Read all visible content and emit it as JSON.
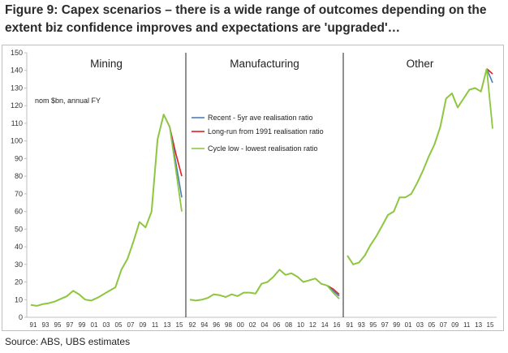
{
  "title": "Figure 9: Capex scenarios – there is a wide range of outcomes depending on the extent biz confidence improves and expectations are 'upgraded'…",
  "source": "Source:  ABS, UBS estimates",
  "colors": {
    "recent": "#4a7ebb",
    "longrun": "#e02020",
    "cyclelow": "#8dc63f",
    "divider": "#222222",
    "axis": "#bfbfbf"
  },
  "chart_data": {
    "type": "line",
    "ylim": [
      0,
      150
    ],
    "yticks": [
      0,
      10,
      20,
      30,
      40,
      50,
      60,
      70,
      80,
      90,
      100,
      110,
      120,
      130,
      140,
      150
    ],
    "unit_note": "nom $bn, annual FY",
    "legend": [
      "Recent - 5yr ave realisation ratio",
      "Long-run from 1991 realisation ratio",
      "Cycle low - lowest realisation ratio"
    ],
    "panels": [
      {
        "name": "Mining",
        "x": [
          1991,
          1992,
          1993,
          1994,
          1995,
          1996,
          1997,
          1998,
          1999,
          2000,
          2001,
          2002,
          2003,
          2004,
          2005,
          2006,
          2007,
          2008,
          2009,
          2010,
          2011,
          2012,
          2013,
          2014
        ],
        "history": [
          7,
          6.5,
          7.5,
          8,
          9,
          10.5,
          12,
          15,
          13,
          10,
          9.5,
          11,
          13,
          15,
          17,
          27,
          33,
          43,
          54,
          51,
          60,
          101,
          115,
          108
        ],
        "scenarios_x": [
          2014,
          2015,
          2016
        ],
        "recent": [
          108,
          88,
          68
        ],
        "longrun": [
          108,
          93,
          80
        ],
        "cyclelow": [
          108,
          84,
          60
        ],
        "xticks": [
          "91",
          "93",
          "95",
          "97",
          "99",
          "01",
          "03",
          "05",
          "07",
          "09",
          "11",
          "13",
          "15"
        ]
      },
      {
        "name": "Manufacturing",
        "x": [
          1991,
          1992,
          1993,
          1994,
          1995,
          1996,
          1997,
          1998,
          1999,
          2000,
          2001,
          2002,
          2003,
          2004,
          2005,
          2006,
          2007,
          2008,
          2009,
          2010,
          2011,
          2012,
          2013,
          2014
        ],
        "history": [
          10,
          9.5,
          10,
          11,
          13,
          12.5,
          11.5,
          13,
          12,
          14,
          14,
          13.5,
          19,
          20,
          23,
          27,
          24,
          25,
          23,
          20,
          21,
          22,
          19,
          18
        ],
        "scenarios_x": [
          2014,
          2015,
          2016
        ],
        "recent": [
          18,
          15,
          12
        ],
        "longrun": [
          18,
          16,
          13
        ],
        "cyclelow": [
          18,
          14,
          10.5
        ],
        "xticks": [
          "92",
          "94",
          "96",
          "98",
          "00",
          "02",
          "04",
          "06",
          "08",
          "10",
          "12",
          "14",
          "16"
        ]
      },
      {
        "name": "Other",
        "x": [
          1991,
          1992,
          1993,
          1994,
          1995,
          1996,
          1997,
          1998,
          1999,
          2000,
          2001,
          2002,
          2003,
          2004,
          2005,
          2006,
          2007,
          2008,
          2009,
          2010,
          2011,
          2012,
          2013,
          2014,
          2015
        ],
        "history": [
          35,
          30,
          31,
          35,
          41,
          46,
          52,
          58,
          60,
          68,
          68,
          70,
          76,
          83,
          91,
          98,
          108,
          124,
          127,
          119,
          124,
          129,
          130,
          128,
          141
        ],
        "scenarios_x": [
          2015,
          2016
        ],
        "recent": [
          141,
          133
        ],
        "longrun": [
          141,
          138
        ],
        "cyclelow": [
          141,
          107
        ],
        "xticks": [
          "91",
          "93",
          "95",
          "97",
          "99",
          "01",
          "03",
          "05",
          "07",
          "09",
          "11",
          "13",
          "15"
        ]
      }
    ]
  }
}
